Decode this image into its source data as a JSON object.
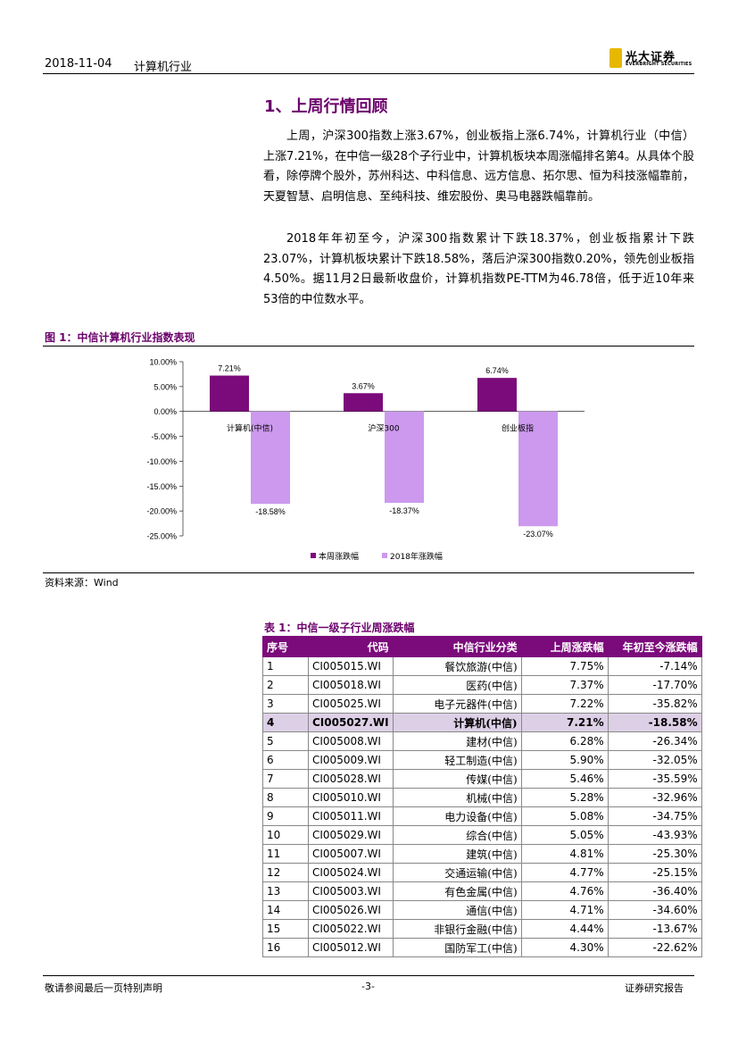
{
  "header": {
    "date": "2018-11-04",
    "industry": "计算机行业",
    "logo_cn": "光大证券",
    "logo_en": "EVERBRIGHT SECURITIES"
  },
  "section": {
    "title": "1、上周行情回顾",
    "p1": "上周，沪深300指数上涨3.67%，创业板指上涨6.74%，计算机行业（中信）上涨7.21%，在中信一级28个子行业中，计算机板块本周涨幅排名第4。从具体个股看，除停牌个股外，苏州科达、中科信息、远方信息、拓尔思、恒为科技涨幅靠前，天夏智慧、启明信息、至纯科技、维宏股份、奥马电器跌幅靠前。",
    "p2": "2018年年初至今，沪深300指数累计下跌18.37%，创业板指累计下跌23.07%，计算机板块累计下跌18.58%，落后沪深300指数0.20%，领先创业板指4.50%。据11月2日最新收盘价，计算机指数PE-TTM为46.78倍，低于近10年来 53倍的中位数水平。"
  },
  "figure": {
    "title": "图 1：中信计算机行业指数表现",
    "source": "资料来源：Wind"
  },
  "chart_data": {
    "type": "bar",
    "categories": [
      "计算机(中信)",
      "沪深300",
      "创业板指"
    ],
    "series": [
      {
        "name": "本周涨跌幅",
        "values": [
          7.21,
          3.67,
          6.74
        ],
        "labels": [
          "7.21%",
          "3.67%",
          "6.74%"
        ],
        "color": "#7b0a7b"
      },
      {
        "name": "2018年涨跌幅",
        "values": [
          -18.58,
          -18.37,
          -23.07
        ],
        "labels": [
          "-18.58%",
          "-18.37%",
          "-23.07%"
        ],
        "color": "#cc99ee"
      }
    ],
    "yticks": [
      "10.00%",
      "5.00%",
      "0.00%",
      "-5.00%",
      "-10.00%",
      "-15.00%",
      "-20.00%",
      "-25.00%"
    ],
    "ylim": [
      -25,
      10
    ],
    "legend": "bottom",
    "grid": false
  },
  "table": {
    "title": "表 1：中信一级子行业周涨跌幅",
    "headers": [
      "序号",
      "代码",
      "中信行业分类",
      "上周涨跌幅",
      "年初至今涨跌幅"
    ],
    "rows": [
      [
        "1",
        "CI005015.WI",
        "餐饮旅游(中信)",
        "7.75%",
        "-7.14%"
      ],
      [
        "2",
        "CI005018.WI",
        "医药(中信)",
        "7.37%",
        "-17.70%"
      ],
      [
        "3",
        "CI005025.WI",
        "电子元器件(中信)",
        "7.22%",
        "-35.82%"
      ],
      [
        "4",
        "CI005027.WI",
        "计算机(中信)",
        "7.21%",
        "-18.58%"
      ],
      [
        "5",
        "CI005008.WI",
        "建材(中信)",
        "6.28%",
        "-26.34%"
      ],
      [
        "6",
        "CI005009.WI",
        "轻工制造(中信)",
        "5.90%",
        "-32.05%"
      ],
      [
        "7",
        "CI005028.WI",
        "传媒(中信)",
        "5.46%",
        "-35.59%"
      ],
      [
        "8",
        "CI005010.WI",
        "机械(中信)",
        "5.28%",
        "-32.96%"
      ],
      [
        "9",
        "CI005011.WI",
        "电力设备(中信)",
        "5.08%",
        "-34.75%"
      ],
      [
        "10",
        "CI005029.WI",
        "综合(中信)",
        "5.05%",
        "-43.93%"
      ],
      [
        "11",
        "CI005007.WI",
        "建筑(中信)",
        "4.81%",
        "-25.30%"
      ],
      [
        "12",
        "CI005024.WI",
        "交通运输(中信)",
        "4.77%",
        "-25.15%"
      ],
      [
        "13",
        "CI005003.WI",
        "有色金属(中信)",
        "4.76%",
        "-36.40%"
      ],
      [
        "14",
        "CI005026.WI",
        "通信(中信)",
        "4.71%",
        "-34.60%"
      ],
      [
        "15",
        "CI005022.WI",
        "非银行金融(中信)",
        "4.44%",
        "-13.67%"
      ],
      [
        "16",
        "CI005012.WI",
        "国防军工(中信)",
        "4.30%",
        "-22.62%"
      ]
    ],
    "highlight_row": 3,
    "highlight_color": "#ddd0e6",
    "header_color": "#7b0a7b"
  },
  "footer": {
    "left": "敬请参阅最后一页特别声明",
    "page": "-3-",
    "right": "证券研究报告"
  }
}
